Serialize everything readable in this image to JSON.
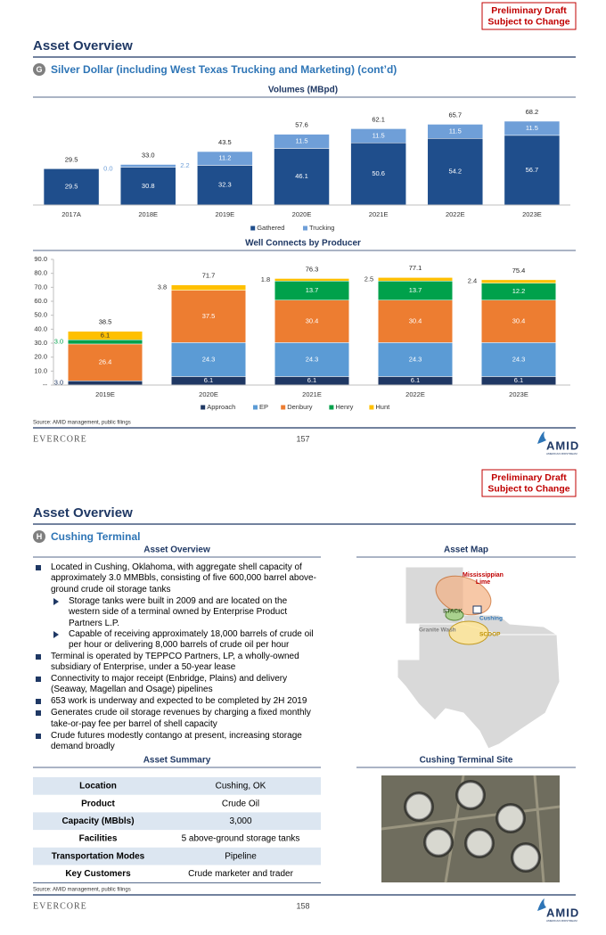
{
  "pages": [
    {
      "draft_notice": [
        "Preliminary Draft",
        "Subject to Change"
      ],
      "title": "Asset Overview",
      "section_letter": "G",
      "section_title": "Silver Dollar (including West Texas Trucking and Marketing) (cont’d)",
      "charts": [
        {
          "type": "bar",
          "stacked": true,
          "title": "Volumes (MBpd)",
          "categories": [
            "2017A",
            "2018E",
            "2019E",
            "2020E",
            "2021E",
            "2022E",
            "2023E"
          ],
          "series": [
            {
              "name": "Gathered",
              "color": "#1f4e8c",
              "values": [
                29.5,
                30.8,
                32.3,
                46.1,
                50.6,
                54.2,
                56.7
              ],
              "value_labels": [
                "29.5",
                "30.8",
                "32.3",
                "46.1",
                "50.6",
                "54.2",
                "56.7"
              ]
            },
            {
              "name": "Trucking",
              "color": "#6f9fd8",
              "values": [
                0.0,
                2.2,
                11.2,
                11.5,
                11.5,
                11.5,
                11.5
              ],
              "value_labels": [
                "0.0",
                "2.2",
                "11.2",
                "11.5",
                "11.5",
                "11.5",
                "11.5"
              ]
            }
          ],
          "totals": [
            29.5,
            33.0,
            43.5,
            57.6,
            62.1,
            65.7,
            68.2
          ],
          "total_labels": [
            "29.5",
            "33.0",
            "43.5",
            "57.6",
            "62.1",
            "65.7",
            "68.2"
          ],
          "legend": "bottom"
        },
        {
          "type": "bar",
          "stacked": true,
          "title": "Well Connects by Producer",
          "categories": [
            "2019E",
            "2020E",
            "2021E",
            "2022E",
            "2023E"
          ],
          "series": [
            {
              "name": "Approach",
              "color": "#1f3864",
              "values": [
                3.0,
                6.1,
                6.1,
                6.1,
                6.1
              ],
              "value_labels": [
                "3.0",
                "6.1",
                "6.1",
                "6.1",
                "6.1"
              ]
            },
            {
              "name": "EP",
              "color": "#5b9bd5",
              "values": [
                null,
                24.3,
                24.3,
                24.3,
                24.3
              ],
              "value_labels": [
                null,
                "24.3",
                "24.3",
                "24.3",
                "24.3"
              ]
            },
            {
              "name": "Denbury",
              "color": "#ed7d31",
              "values": [
                26.4,
                37.5,
                30.4,
                30.4,
                30.4
              ],
              "value_labels": [
                "26.4",
                "37.5",
                "30.4",
                "30.4",
                "30.4"
              ]
            },
            {
              "name": "Henry",
              "color": "#00a14b",
              "values": [
                3.0,
                null,
                13.7,
                13.7,
                12.2
              ],
              "value_labels": [
                "3.0",
                null,
                "13.7",
                "13.7",
                "12.2"
              ]
            },
            {
              "name": "Hunt",
              "color": "#ffc000",
              "values": [
                6.1,
                3.8,
                1.8,
                2.5,
                2.4
              ],
              "value_labels": [
                "6.1",
                "3.8",
                "1.8",
                "2.5",
                "2.4"
              ]
            }
          ],
          "totals": [
            38.5,
            71.7,
            76.3,
            77.1,
            75.4
          ],
          "ylim": [
            0,
            90
          ],
          "yticks": [
            {
              "value": 0,
              "label": "--"
            },
            {
              "value": 10,
              "label": "10.0"
            },
            {
              "value": 20,
              "label": "20.0"
            },
            {
              "value": 30,
              "label": "30.0"
            },
            {
              "value": 40,
              "label": "40.0"
            },
            {
              "value": 50,
              "label": "50.0"
            },
            {
              "value": 60,
              "label": "60.0"
            },
            {
              "value": 70,
              "label": "70.0"
            },
            {
              "value": 80,
              "label": "80.0"
            },
            {
              "value": 90,
              "label": "90.0"
            }
          ],
          "legend": "bottom"
        }
      ],
      "source": "Source: AMID management, public filings",
      "footer": {
        "brand": "EVERCORE",
        "page_number": 157,
        "logo": "AMID",
        "tagline": "AMERICAN MIDSTREAM"
      }
    },
    {
      "draft_notice": [
        "Preliminary Draft",
        "Subject to Change"
      ],
      "title": "Asset Overview",
      "section_letter": "H",
      "section_title": "Cushing Terminal",
      "overview": {
        "heading": "Asset Overview",
        "bullets": [
          {
            "text": "Located in Cushing, Oklahoma, with aggregate shell capacity of approximately 3.0 MMBbls, consisting of five 600,000 barrel above-ground crude oil storage tanks",
            "sub": [
              "Storage tanks were built in 2009 and are located on the western side of a terminal owned by Enterprise Product Partners L.P.",
              "Capable of receiving approximately 18,000 barrels of crude oil per hour or delivering 8,000 barrels of crude oil per hour"
            ]
          },
          {
            "text": "Terminal is operated by TEPPCO Partners, LP, a wholly-owned subsidiary of Enterprise, under a 50-year lease",
            "sub": []
          },
          {
            "text": "Connectivity to major receipt (Enbridge, Plains) and delivery (Seaway, Magellan and Osage) pipelines",
            "sub": []
          },
          {
            "text": "653 work is underway and expected to be completed by 2H 2019",
            "sub": []
          },
          {
            "text": "Generates crude oil storage revenues by charging a fixed monthly take-or-pay fee per barrel of shell capacity",
            "sub": []
          },
          {
            "text": "Crude futures modestly contango at present, increasing storage demand broadly",
            "sub": []
          }
        ]
      },
      "map": {
        "heading": "Asset Map",
        "labels": [
          "Mississippian Lime",
          "STACK",
          "Cushing",
          "Granite Wash",
          "SCOOP"
        ]
      },
      "summary": {
        "heading": "Asset Summary",
        "rows": [
          [
            "Location",
            "Cushing, OK"
          ],
          [
            "Product",
            "Crude Oil"
          ],
          [
            "Capacity (MBbls)",
            "3,000"
          ],
          [
            "Facilities",
            "5 above-ground storage tanks"
          ],
          [
            "Transportation Modes",
            "Pipeline"
          ],
          [
            "Key Customers",
            "Crude marketer and trader"
          ]
        ]
      },
      "site": {
        "heading": "Cushing Terminal Site"
      },
      "source": "Source: AMID management, public filings",
      "footer": {
        "brand": "EVERCORE",
        "page_number": 158,
        "logo": "AMID",
        "tagline": "AMERICAN MIDSTREAM"
      }
    }
  ]
}
